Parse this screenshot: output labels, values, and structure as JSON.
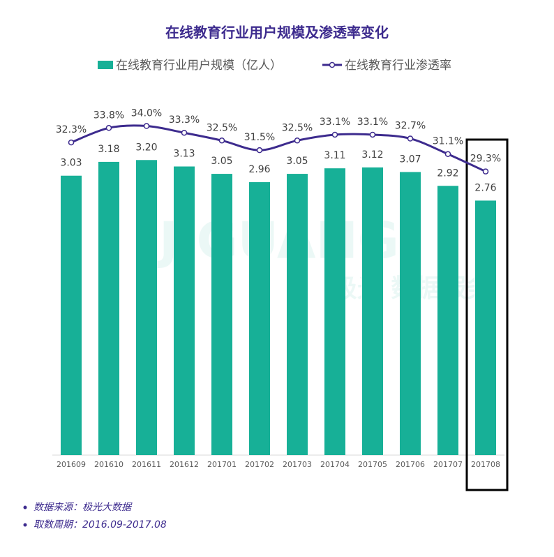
{
  "chart_data": {
    "type": "bar-line",
    "title": "在线教育行业用户规模及渗透率变化",
    "categories": [
      "201609",
      "201610",
      "201611",
      "201612",
      "201701",
      "201702",
      "201703",
      "201704",
      "201705",
      "201706",
      "201707",
      "201708"
    ],
    "series": [
      {
        "name": "在线教育行业用户规模（亿人）",
        "type": "bar",
        "color": "#17b097",
        "values": [
          3.03,
          3.18,
          3.2,
          3.13,
          3.05,
          2.96,
          3.05,
          3.11,
          3.12,
          3.07,
          2.92,
          2.76
        ],
        "value_labels": [
          "3.03",
          "3.18",
          "3.20",
          "3.13",
          "3.05",
          "2.96",
          "3.05",
          "3.11",
          "3.12",
          "3.07",
          "2.92",
          "2.76"
        ]
      },
      {
        "name": "在线教育行业渗透率",
        "type": "line",
        "axis": "y2",
        "color": "#3d2b8e",
        "values": [
          32.3,
          33.8,
          34.0,
          33.3,
          32.5,
          31.5,
          32.5,
          33.1,
          33.1,
          32.7,
          31.1,
          29.3
        ],
        "value_labels": [
          "32.3%",
          "33.8%",
          "34.0%",
          "33.3%",
          "32.5%",
          "31.5%",
          "32.5%",
          "33.1%",
          "33.1%",
          "32.7%",
          "31.1%",
          "29.3%"
        ]
      }
    ],
    "ylim": [
      0,
      3.8
    ],
    "y2lim": [
      0,
      36.2
    ],
    "watermark": [
      "JIGUANG",
      "极光 数据服务"
    ],
    "notes": [
      "数据来源：极光大数据",
      "取数周期：2016.09-2017.08"
    ]
  }
}
